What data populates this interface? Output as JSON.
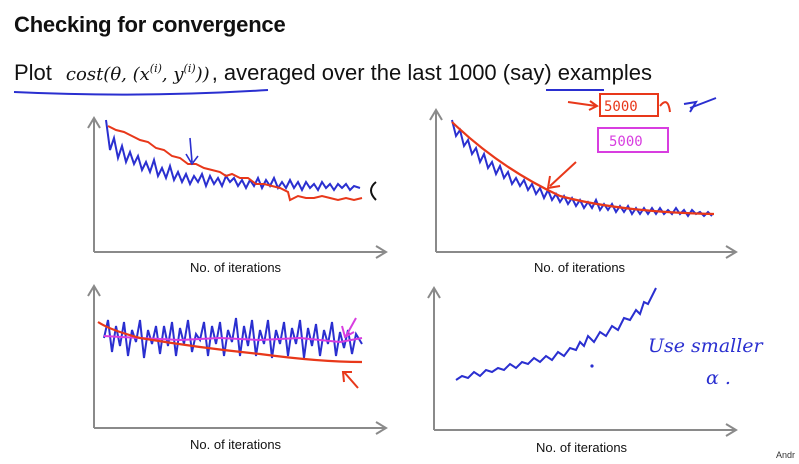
{
  "slide": {
    "title": "Checking for convergence",
    "subtitle_lead": "Plot",
    "formula_parts": {
      "cost": "cost(θ, (x",
      "sup1": "(i)",
      "mid": ", y",
      "sup2": "(i)",
      "end": "))"
    },
    "subtitle_rest_a": ", averaged over the last ",
    "subtitle_number": "1000",
    "subtitle_rest_b": " (say) examples",
    "corner_text": "Andr"
  },
  "annotations": {
    "box_1": "5000",
    "box_2": "5000",
    "note_line_1": "Use smaller",
    "note_line_2": "α ."
  },
  "colors": {
    "blue_ink": "#2a2fd0",
    "red_ink": "#e8381a",
    "magenta_ink": "#d83ee0",
    "axis": "#8a8a8a"
  },
  "chart_data": [
    {
      "type": "line",
      "title": "",
      "xlabel": "No. of iterations",
      "ylabel": "",
      "description_series": [
        {
          "name": "",
          "color": "blue",
          "shape": "noisy decreasing, flattening"
        },
        {
          "name": "",
          "color": "red",
          "shape": "smoother decreasing, ends lower than blue"
        }
      ]
    },
    {
      "type": "line",
      "title": "",
      "xlabel": "No. of iterations",
      "ylabel": "",
      "description_series": [
        {
          "name": "",
          "color": "blue",
          "shape": "noisy decreasing curve"
        },
        {
          "name": "",
          "color": "red",
          "shape": "smooth decreasing curve"
        }
      ]
    },
    {
      "type": "line",
      "title": "",
      "xlabel": "No. of iterations",
      "ylabel": "",
      "description_series": [
        {
          "name": "",
          "color": "blue",
          "shape": "highly oscillating, roughly flat"
        },
        {
          "name": "",
          "color": "magenta",
          "shape": "roughly flat"
        },
        {
          "name": "",
          "color": "red",
          "shape": "slightly decreasing"
        }
      ]
    },
    {
      "type": "line",
      "title": "",
      "xlabel": "No. of iterations",
      "ylabel": "",
      "description_series": [
        {
          "name": "",
          "color": "blue",
          "shape": "noisy increasing (diverging)"
        }
      ]
    }
  ]
}
